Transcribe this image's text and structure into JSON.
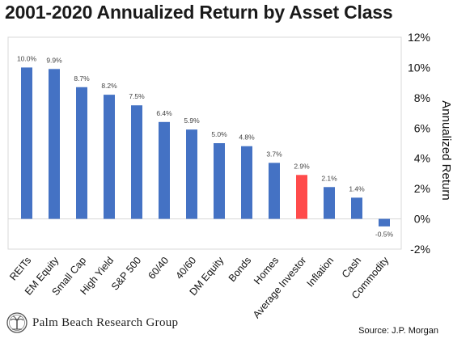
{
  "chart_data": {
    "type": "bar",
    "title": "2001-2020 Annualized Return by Asset Class",
    "ylabel": "Annualized Return",
    "xlabel": "",
    "ylim": [
      -2,
      12
    ],
    "yticks": [
      -2,
      0,
      2,
      4,
      6,
      8,
      10,
      12
    ],
    "ytick_labels": [
      "-2%",
      "0%",
      "2%",
      "4%",
      "6%",
      "8%",
      "10%",
      "12%"
    ],
    "categories": [
      "REITs",
      "EM Equity",
      "Small Cap",
      "High Yield",
      "S&P 500",
      "60/40",
      "40/60",
      "DM Equity",
      "Bonds",
      "Homes",
      "Average Investor",
      "Inflation",
      "Cash",
      "Commodity"
    ],
    "values": [
      10.0,
      9.9,
      8.7,
      8.2,
      7.5,
      6.4,
      5.9,
      5.0,
      4.8,
      3.7,
      2.9,
      2.1,
      1.4,
      -0.5
    ],
    "data_labels": [
      "10.0%",
      "9.9%",
      "8.7%",
      "8.2%",
      "7.5%",
      "6.4%",
      "5.9%",
      "5.0%",
      "4.8%",
      "3.7%",
      "2.9%",
      "2.1%",
      "1.4%",
      "-0.5%"
    ],
    "highlight_category": "Average Investor",
    "colors": {
      "bar": "#4472C4",
      "highlight": "#FF4B4B"
    },
    "yaxis_position": "right",
    "grid": false
  },
  "footer": {
    "logo_text": "Palm Beach Research Group",
    "logo_icon": "palm-tree-seal-icon",
    "source": "Source: J.P. Morgan"
  }
}
